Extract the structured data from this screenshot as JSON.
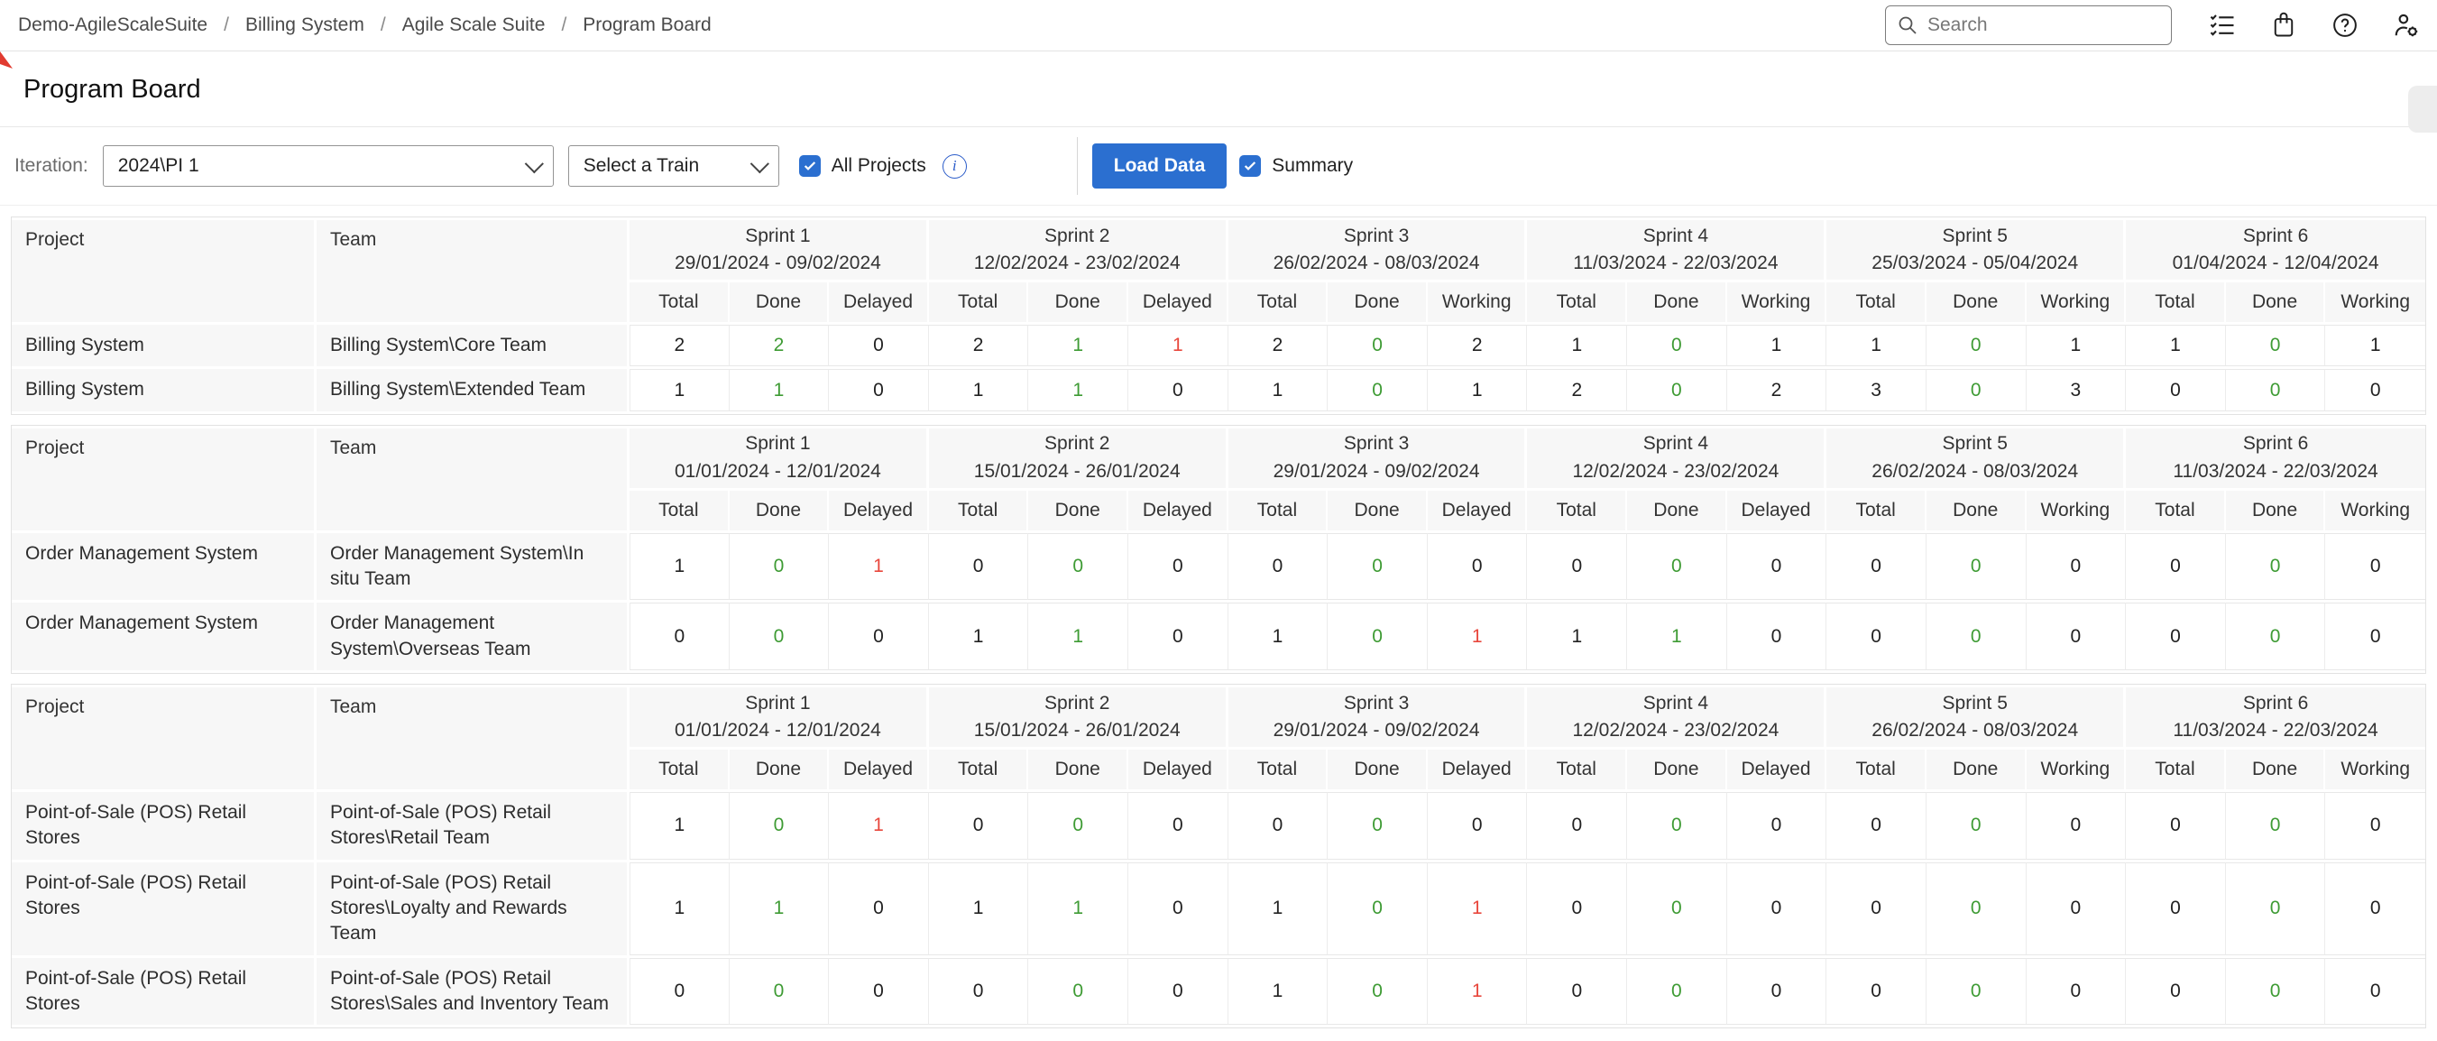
{
  "nav": {
    "breadcrumbs": [
      "Demo-AgileScaleSuite",
      "Billing System",
      "Agile Scale Suite",
      "Program Board"
    ],
    "separator": "/",
    "search_placeholder": "Search",
    "icons": [
      "tasks-checklist-icon",
      "bag-icon",
      "help-icon",
      "user-settings-icon"
    ]
  },
  "header": {
    "title": "Program Board"
  },
  "toolbar": {
    "iteration_label": "Iteration:",
    "iteration_value": "2024\\PI 1",
    "train_placeholder": "Select a Train",
    "all_projects_label": "All Projects",
    "all_projects_checked": true,
    "info_icon_glyph": "i",
    "load_data_label": "Load Data",
    "summary_label": "Summary",
    "summary_checked": true
  },
  "colors": {
    "accent_blue": "#2b6fd0",
    "done_green": "#3e9b34",
    "delayed_red": "#e8473c",
    "header_gray": "#f7f7f7"
  },
  "tables": [
    {
      "project_header": "Project",
      "team_header": "Team",
      "sprints": [
        {
          "name": "Sprint 1",
          "dates": "29/01/2024 - 09/02/2024",
          "cols": [
            "Total",
            "Done",
            "Delayed"
          ]
        },
        {
          "name": "Sprint 2",
          "dates": "12/02/2024 - 23/02/2024",
          "cols": [
            "Total",
            "Done",
            "Delayed"
          ]
        },
        {
          "name": "Sprint 3",
          "dates": "26/02/2024 - 08/03/2024",
          "cols": [
            "Total",
            "Done",
            "Working"
          ]
        },
        {
          "name": "Sprint 4",
          "dates": "11/03/2024 - 22/03/2024",
          "cols": [
            "Total",
            "Done",
            "Working"
          ]
        },
        {
          "name": "Sprint 5",
          "dates": "25/03/2024 - 05/04/2024",
          "cols": [
            "Total",
            "Done",
            "Working"
          ]
        },
        {
          "name": "Sprint 6",
          "dates": "01/04/2024 - 12/04/2024",
          "cols": [
            "Total",
            "Done",
            "Working"
          ]
        }
      ],
      "rows": [
        {
          "project": "Billing System",
          "team": "Billing System\\Core Team",
          "cells": [
            [
              "2",
              "p"
            ],
            [
              "2",
              "g"
            ],
            [
              "0",
              "p"
            ],
            [
              "2",
              "p"
            ],
            [
              "1",
              "g"
            ],
            [
              "1",
              "r"
            ],
            [
              "2",
              "p"
            ],
            [
              "0",
              "g"
            ],
            [
              "2",
              "p"
            ],
            [
              "1",
              "p"
            ],
            [
              "0",
              "g"
            ],
            [
              "1",
              "p"
            ],
            [
              "1",
              "p"
            ],
            [
              "0",
              "g"
            ],
            [
              "1",
              "p"
            ],
            [
              "1",
              "p"
            ],
            [
              "0",
              "g"
            ],
            [
              "1",
              "p"
            ]
          ]
        },
        {
          "project": "Billing System",
          "team": "Billing System\\Extended Team",
          "cells": [
            [
              "1",
              "p"
            ],
            [
              "1",
              "g"
            ],
            [
              "0",
              "p"
            ],
            [
              "1",
              "p"
            ],
            [
              "1",
              "g"
            ],
            [
              "0",
              "p"
            ],
            [
              "1",
              "p"
            ],
            [
              "0",
              "g"
            ],
            [
              "1",
              "p"
            ],
            [
              "2",
              "p"
            ],
            [
              "0",
              "g"
            ],
            [
              "2",
              "p"
            ],
            [
              "3",
              "p"
            ],
            [
              "0",
              "g"
            ],
            [
              "3",
              "p"
            ],
            [
              "0",
              "p"
            ],
            [
              "0",
              "g"
            ],
            [
              "0",
              "p"
            ]
          ]
        }
      ]
    },
    {
      "project_header": "Project",
      "team_header": "Team",
      "sprints": [
        {
          "name": "Sprint 1",
          "dates": "01/01/2024 - 12/01/2024",
          "cols": [
            "Total",
            "Done",
            "Delayed"
          ]
        },
        {
          "name": "Sprint 2",
          "dates": "15/01/2024 - 26/01/2024",
          "cols": [
            "Total",
            "Done",
            "Delayed"
          ]
        },
        {
          "name": "Sprint 3",
          "dates": "29/01/2024 - 09/02/2024",
          "cols": [
            "Total",
            "Done",
            "Delayed"
          ]
        },
        {
          "name": "Sprint 4",
          "dates": "12/02/2024 - 23/02/2024",
          "cols": [
            "Total",
            "Done",
            "Delayed"
          ]
        },
        {
          "name": "Sprint 5",
          "dates": "26/02/2024 - 08/03/2024",
          "cols": [
            "Total",
            "Done",
            "Working"
          ]
        },
        {
          "name": "Sprint 6",
          "dates": "11/03/2024 - 22/03/2024",
          "cols": [
            "Total",
            "Done",
            "Working"
          ]
        }
      ],
      "rows": [
        {
          "project": "Order Management System",
          "team": "Order Management System\\In situ Team",
          "cells": [
            [
              "1",
              "p"
            ],
            [
              "0",
              "g"
            ],
            [
              "1",
              "r"
            ],
            [
              "0",
              "p"
            ],
            [
              "0",
              "g"
            ],
            [
              "0",
              "p"
            ],
            [
              "0",
              "p"
            ],
            [
              "0",
              "g"
            ],
            [
              "0",
              "p"
            ],
            [
              "0",
              "p"
            ],
            [
              "0",
              "g"
            ],
            [
              "0",
              "p"
            ],
            [
              "0",
              "p"
            ],
            [
              "0",
              "g"
            ],
            [
              "0",
              "p"
            ],
            [
              "0",
              "p"
            ],
            [
              "0",
              "g"
            ],
            [
              "0",
              "p"
            ]
          ]
        },
        {
          "project": "Order Management System",
          "team": "Order Management System\\Overseas Team",
          "cells": [
            [
              "0",
              "p"
            ],
            [
              "0",
              "g"
            ],
            [
              "0",
              "p"
            ],
            [
              "1",
              "p"
            ],
            [
              "1",
              "g"
            ],
            [
              "0",
              "p"
            ],
            [
              "1",
              "p"
            ],
            [
              "0",
              "g"
            ],
            [
              "1",
              "r"
            ],
            [
              "1",
              "p"
            ],
            [
              "1",
              "g"
            ],
            [
              "0",
              "p"
            ],
            [
              "0",
              "p"
            ],
            [
              "0",
              "g"
            ],
            [
              "0",
              "p"
            ],
            [
              "0",
              "p"
            ],
            [
              "0",
              "g"
            ],
            [
              "0",
              "p"
            ]
          ]
        }
      ]
    },
    {
      "project_header": "Project",
      "team_header": "Team",
      "sprints": [
        {
          "name": "Sprint 1",
          "dates": "01/01/2024 - 12/01/2024",
          "cols": [
            "Total",
            "Done",
            "Delayed"
          ]
        },
        {
          "name": "Sprint 2",
          "dates": "15/01/2024 - 26/01/2024",
          "cols": [
            "Total",
            "Done",
            "Delayed"
          ]
        },
        {
          "name": "Sprint 3",
          "dates": "29/01/2024 - 09/02/2024",
          "cols": [
            "Total",
            "Done",
            "Delayed"
          ]
        },
        {
          "name": "Sprint 4",
          "dates": "12/02/2024 - 23/02/2024",
          "cols": [
            "Total",
            "Done",
            "Delayed"
          ]
        },
        {
          "name": "Sprint 5",
          "dates": "26/02/2024 - 08/03/2024",
          "cols": [
            "Total",
            "Done",
            "Working"
          ]
        },
        {
          "name": "Sprint 6",
          "dates": "11/03/2024 - 22/03/2024",
          "cols": [
            "Total",
            "Done",
            "Working"
          ]
        }
      ],
      "rows": [
        {
          "project": "Point-of-Sale (POS) Retail Stores",
          "team": "Point-of-Sale (POS) Retail Stores\\Retail Team",
          "cells": [
            [
              "1",
              "p"
            ],
            [
              "0",
              "g"
            ],
            [
              "1",
              "r"
            ],
            [
              "0",
              "p"
            ],
            [
              "0",
              "g"
            ],
            [
              "0",
              "p"
            ],
            [
              "0",
              "p"
            ],
            [
              "0",
              "g"
            ],
            [
              "0",
              "p"
            ],
            [
              "0",
              "p"
            ],
            [
              "0",
              "g"
            ],
            [
              "0",
              "p"
            ],
            [
              "0",
              "p"
            ],
            [
              "0",
              "g"
            ],
            [
              "0",
              "p"
            ],
            [
              "0",
              "p"
            ],
            [
              "0",
              "g"
            ],
            [
              "0",
              "p"
            ]
          ]
        },
        {
          "project": "Point-of-Sale (POS) Retail Stores",
          "team": "Point-of-Sale (POS) Retail Stores\\Loyalty and Rewards Team",
          "cells": [
            [
              "1",
              "p"
            ],
            [
              "1",
              "g"
            ],
            [
              "0",
              "p"
            ],
            [
              "1",
              "p"
            ],
            [
              "1",
              "g"
            ],
            [
              "0",
              "p"
            ],
            [
              "1",
              "p"
            ],
            [
              "0",
              "g"
            ],
            [
              "1",
              "r"
            ],
            [
              "0",
              "p"
            ],
            [
              "0",
              "g"
            ],
            [
              "0",
              "p"
            ],
            [
              "0",
              "p"
            ],
            [
              "0",
              "g"
            ],
            [
              "0",
              "p"
            ],
            [
              "0",
              "p"
            ],
            [
              "0",
              "g"
            ],
            [
              "0",
              "p"
            ]
          ]
        },
        {
          "project": "Point-of-Sale (POS) Retail Stores",
          "team": "Point-of-Sale (POS) Retail Stores\\Sales and Inventory Team",
          "cells": [
            [
              "0",
              "p"
            ],
            [
              "0",
              "g"
            ],
            [
              "0",
              "p"
            ],
            [
              "0",
              "p"
            ],
            [
              "0",
              "g"
            ],
            [
              "0",
              "p"
            ],
            [
              "1",
              "p"
            ],
            [
              "0",
              "g"
            ],
            [
              "1",
              "r"
            ],
            [
              "0",
              "p"
            ],
            [
              "0",
              "g"
            ],
            [
              "0",
              "p"
            ],
            [
              "0",
              "p"
            ],
            [
              "0",
              "g"
            ],
            [
              "0",
              "p"
            ],
            [
              "0",
              "p"
            ],
            [
              "0",
              "g"
            ],
            [
              "0",
              "p"
            ]
          ]
        }
      ]
    }
  ]
}
